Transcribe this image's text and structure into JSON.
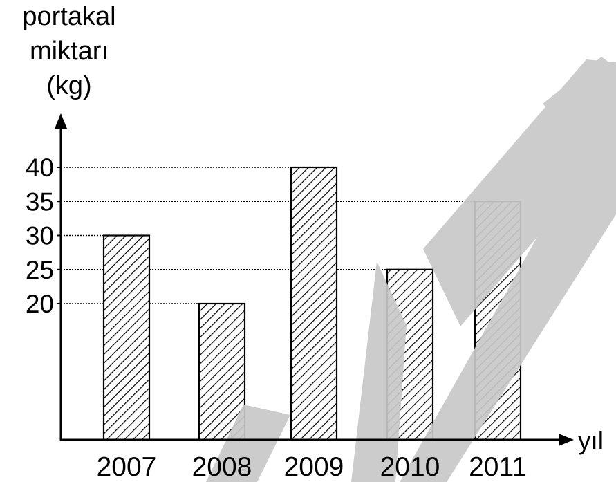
{
  "chart_data": {
    "type": "bar",
    "ylabel": [
      "portakal",
      "miktarı",
      "(kg)"
    ],
    "xlabel": "yıl",
    "categories": [
      "2007",
      "2008",
      "2009",
      "2010",
      "2011"
    ],
    "values": [
      30,
      20,
      40,
      25,
      35
    ],
    "y_ticks": [
      "20",
      "25",
      "30",
      "35",
      "40"
    ],
    "ylim": [
      0,
      40
    ],
    "bar_fill": "diagonal-hatch",
    "reference_lines": "dotted",
    "colors": {
      "ink": "#000000",
      "watermark": "#c8c8c8"
    }
  }
}
